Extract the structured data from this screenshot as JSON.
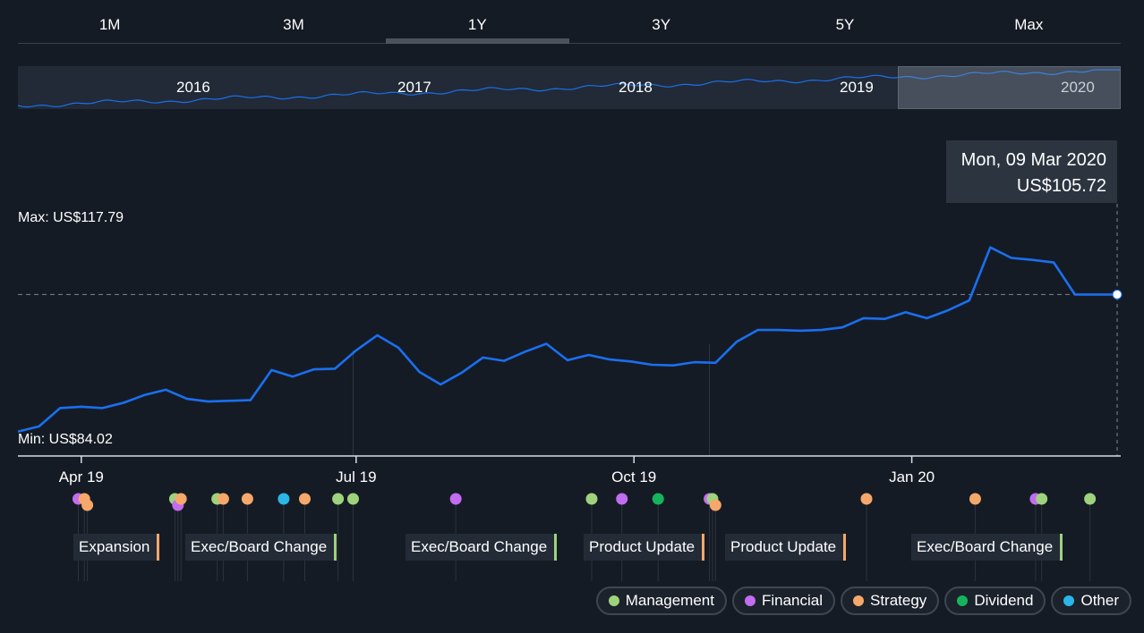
{
  "tabs": [
    "1M",
    "3M",
    "1Y",
    "3Y",
    "5Y",
    "Max"
  ],
  "active_tab": "1Y",
  "navigator": {
    "years": [
      "2016",
      "2017",
      "2018",
      "2019",
      "2020"
    ]
  },
  "tooltip": {
    "date": "Mon, 09 Mar 2020",
    "value": "US$105.72"
  },
  "max_label": "Max: US$117.79",
  "min_label": "Min: US$84.02",
  "colors": {
    "line": "#1a6ff0",
    "Management": "#9ed27c",
    "Financial": "#c26cf0",
    "Strategy": "#f5a86a",
    "Dividend": "#15b45c",
    "Other": "#2ab6e6"
  },
  "chart_data": {
    "type": "line",
    "title": "",
    "xlabel": "",
    "ylabel": "",
    "x_ticks": [
      "Apr 19",
      "Jul 19",
      "Oct 19",
      "Jan 20"
    ],
    "ylim": [
      83.0,
      122.0
    ],
    "grid": false,
    "series": [
      {
        "name": "",
        "x": [
          "2019-03-11",
          "2019-03-18",
          "2019-03-25",
          "2019-04-01",
          "2019-04-08",
          "2019-04-15",
          "2019-04-22",
          "2019-04-29",
          "2019-05-06",
          "2019-05-13",
          "2019-05-20",
          "2019-05-27",
          "2019-06-03",
          "2019-06-10",
          "2019-06-17",
          "2019-06-24",
          "2019-07-01",
          "2019-07-08",
          "2019-07-15",
          "2019-07-22",
          "2019-07-29",
          "2019-08-05",
          "2019-08-12",
          "2019-08-19",
          "2019-08-26",
          "2019-09-02",
          "2019-09-09",
          "2019-09-16",
          "2019-09-23",
          "2019-09-30",
          "2019-10-07",
          "2019-10-14",
          "2019-10-21",
          "2019-10-28",
          "2019-11-04",
          "2019-11-11",
          "2019-11-18",
          "2019-11-25",
          "2019-12-02",
          "2019-12-09",
          "2019-12-16",
          "2019-12-23",
          "2019-12-30",
          "2020-01-06",
          "2020-01-13",
          "2020-01-20",
          "2020-01-27",
          "2020-02-03",
          "2020-02-10",
          "2020-02-17",
          "2020-02-24",
          "2020-03-02",
          "2020-03-09"
        ],
        "values": [
          84.8,
          85.6,
          88.4,
          88.6,
          88.4,
          89.2,
          90.4,
          91.2,
          89.8,
          89.4,
          89.5,
          89.6,
          94.2,
          93.2,
          94.3,
          94.4,
          97.2,
          99.5,
          97.6,
          93.9,
          92.0,
          93.8,
          96.1,
          95.6,
          97.0,
          98.2,
          95.7,
          96.5,
          95.8,
          95.5,
          95.0,
          94.9,
          95.4,
          95.3,
          98.5,
          100.3,
          100.3,
          100.2,
          100.3,
          100.7,
          102.1,
          102.0,
          103.0,
          102.1,
          103.3,
          104.8,
          112.9,
          111.3,
          111.0,
          110.6,
          105.72,
          105.72,
          105.72
        ]
      }
    ],
    "max": 117.79,
    "min": 84.02
  },
  "events": [
    {
      "label": "Expansion",
      "type": "Strategy"
    },
    {
      "label": "Exec/Board Change",
      "type": "Management"
    },
    {
      "label": "Exec/Board Change",
      "type": "Management"
    },
    {
      "label": "Product Update",
      "type": "Strategy"
    },
    {
      "label": "Product Update",
      "type": "Strategy"
    },
    {
      "label": "Exec/Board Change",
      "type": "Management"
    }
  ],
  "event_markers": [
    {
      "date": "2019-03-31",
      "type": "Financial"
    },
    {
      "date": "2019-04-02",
      "type": "Strategy"
    },
    {
      "date": "2019-04-03",
      "type": "Strategy"
    },
    {
      "date": "2019-05-02",
      "type": "Management"
    },
    {
      "date": "2019-05-03",
      "type": "Financial"
    },
    {
      "date": "2019-05-04",
      "type": "Strategy"
    },
    {
      "date": "2019-05-16",
      "type": "Management"
    },
    {
      "date": "2019-05-18",
      "type": "Strategy"
    },
    {
      "date": "2019-05-26",
      "type": "Strategy"
    },
    {
      "date": "2019-06-07",
      "type": "Other"
    },
    {
      "date": "2019-06-14",
      "type": "Strategy"
    },
    {
      "date": "2019-06-25",
      "type": "Management"
    },
    {
      "date": "2019-06-30",
      "type": "Management"
    },
    {
      "date": "2019-08-03",
      "type": "Financial"
    },
    {
      "date": "2019-09-17",
      "type": "Management"
    },
    {
      "date": "2019-09-27",
      "type": "Financial"
    },
    {
      "date": "2019-10-09",
      "type": "Dividend"
    },
    {
      "date": "2019-10-26",
      "type": "Financial"
    },
    {
      "date": "2019-10-27",
      "type": "Management"
    },
    {
      "date": "2019-10-28",
      "type": "Strategy"
    },
    {
      "date": "2019-12-17",
      "type": "Strategy"
    },
    {
      "date": "2020-01-22",
      "type": "Strategy"
    },
    {
      "date": "2020-02-11",
      "type": "Financial"
    },
    {
      "date": "2020-02-13",
      "type": "Management"
    },
    {
      "date": "2020-02-29",
      "type": "Management"
    }
  ],
  "legend": [
    "Management",
    "Financial",
    "Strategy",
    "Dividend",
    "Other"
  ]
}
